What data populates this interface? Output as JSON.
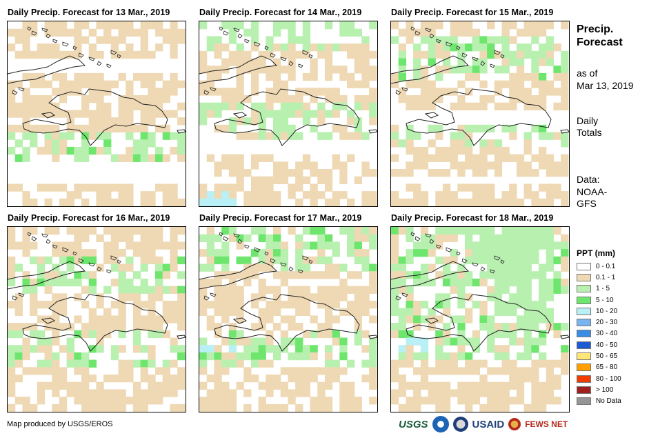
{
  "panels": [
    {
      "title": "Daily Precip. Forecast for 13 Mar., 2019"
    },
    {
      "title": "Daily Precip. Forecast for 14 Mar., 2019"
    },
    {
      "title": "Daily Precip. Forecast for 15 Mar., 2019"
    },
    {
      "title": "Daily Precip. Forecast for 16 Mar., 2019"
    },
    {
      "title": "Daily Precip. Forecast for 17 Mar., 2019"
    },
    {
      "title": "Daily Precip. Forecast for 18 Mar., 2019"
    }
  ],
  "side": {
    "title": "Precip. Forecast",
    "as_of_label": "as of",
    "as_of_date": "Mar 13, 2019",
    "totals_label": "Daily Totals",
    "data_label": "Data:",
    "data_source": "NOAA-GFS"
  },
  "legend": {
    "title": "PPT (mm)",
    "items": [
      {
        "label": "0 - 0.1",
        "color": "#ffffff"
      },
      {
        "label": "0.1 - 1",
        "color": "#efd9b4"
      },
      {
        "label": "1 - 5",
        "color": "#b8f0b0"
      },
      {
        "label": "5 - 10",
        "color": "#6ee66e"
      },
      {
        "label": "10 - 20",
        "color": "#b8f0f5"
      },
      {
        "label": "20 - 30",
        "color": "#78b4f0"
      },
      {
        "label": "30 - 40",
        "color": "#3c8ce6"
      },
      {
        "label": "40 - 50",
        "color": "#1e5ad2"
      },
      {
        "label": "50 - 65",
        "color": "#ffe678"
      },
      {
        "label": "65 - 80",
        "color": "#ffa000"
      },
      {
        "label": "80 - 100",
        "color": "#f03c00"
      },
      {
        "label": "> 100",
        "color": "#a01e1e"
      },
      {
        "label": "No Data",
        "color": "#969696"
      }
    ]
  },
  "credit": "Map produced by USGS/EROS",
  "logos": {
    "usgs": "USGS",
    "usaid": "USAID",
    "fews": "FEWS NET"
  }
}
